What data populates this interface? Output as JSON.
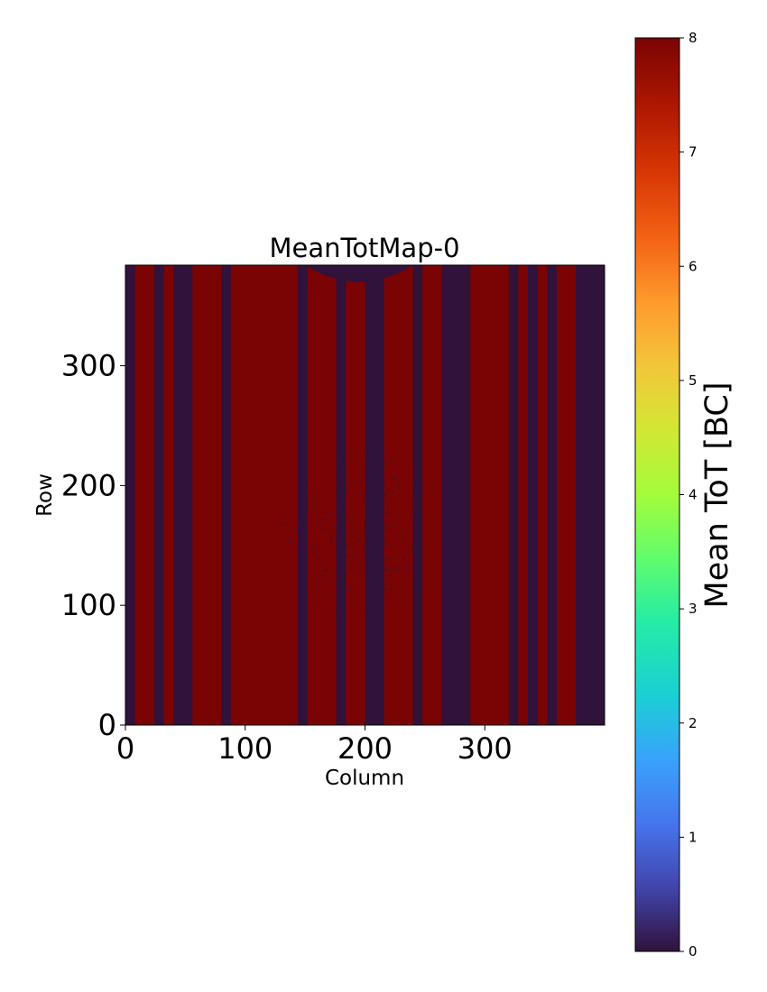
{
  "chart_data": {
    "type": "heatmap",
    "title": "MeanTotMap-0",
    "xlabel": "Column",
    "ylabel": "Row",
    "xlim": [
      0,
      400
    ],
    "ylim": [
      0,
      384
    ],
    "xticks": [
      0,
      100,
      200,
      300
    ],
    "yticks": [
      0,
      100,
      200,
      300
    ],
    "colorbar": {
      "label": "Mean ToT [BC]",
      "colormap": "turbo",
      "range": [
        0,
        8
      ],
      "ticks": [
        0,
        1,
        2,
        3,
        4,
        5,
        6,
        7,
        8
      ]
    },
    "base_value": 8,
    "low_value": 0,
    "low_value_column_bands": [
      [
        0,
        8
      ],
      [
        24,
        32
      ],
      [
        40,
        56
      ],
      [
        80,
        88
      ],
      [
        144,
        152
      ],
      [
        176,
        184
      ],
      [
        200,
        216
      ],
      [
        240,
        248
      ],
      [
        264,
        288
      ],
      [
        320,
        328
      ],
      [
        336,
        344
      ],
      [
        352,
        360
      ],
      [
        376,
        384
      ],
      [
        376,
        400
      ]
    ],
    "low_value_top_region": {
      "columns": [
        150,
        240
      ],
      "rows": [
        370,
        384
      ],
      "shape": "arc"
    },
    "scattered_low_pixels_region": {
      "columns": [
        130,
        260
      ],
      "rows": [
        90,
        230
      ]
    }
  }
}
